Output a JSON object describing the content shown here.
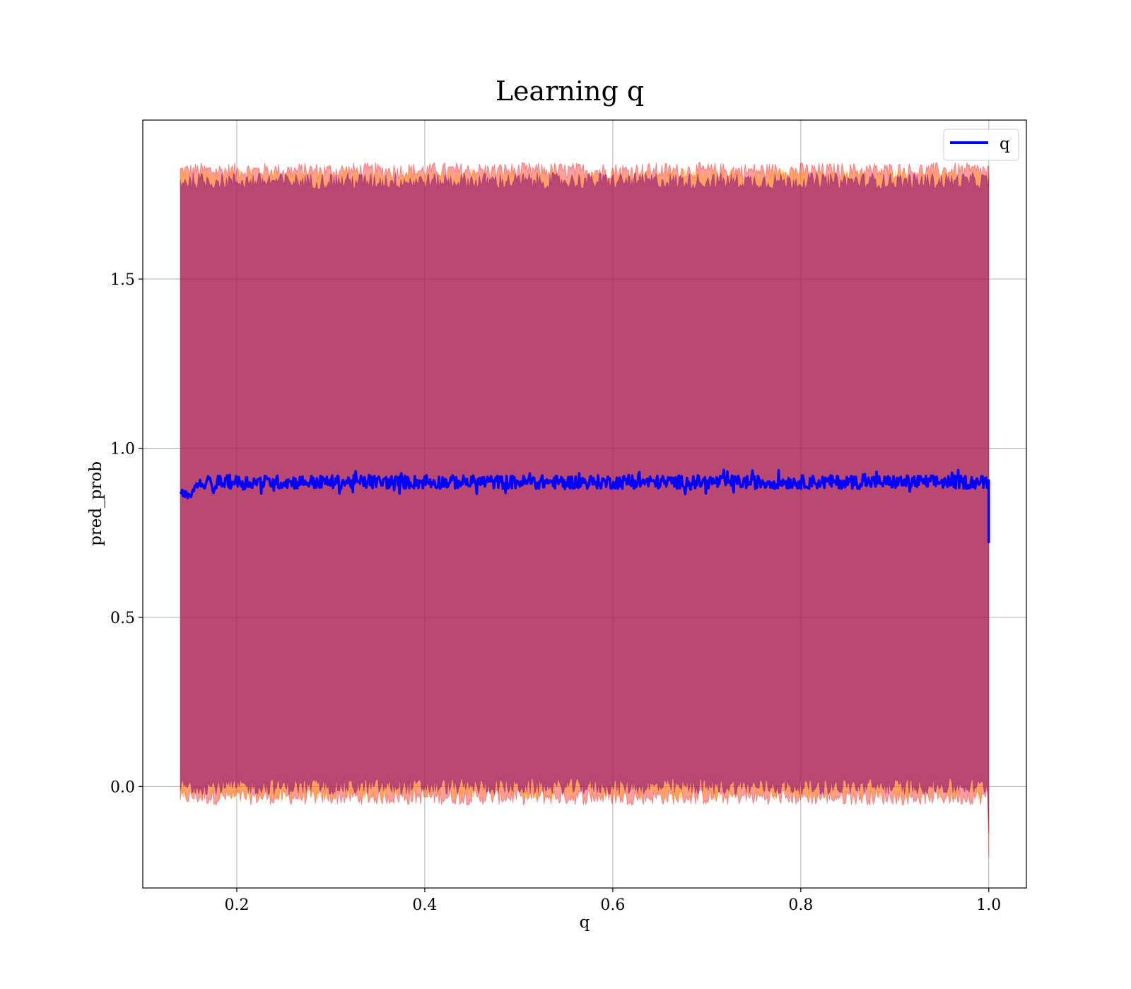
{
  "chart_data": {
    "type": "line",
    "title": "Learning q",
    "xlabel": "q",
    "ylabel": "pred_prob",
    "xlim": [
      0.1,
      1.04
    ],
    "ylim": [
      -0.3,
      1.97
    ],
    "x_ticks": [
      0.2,
      0.4,
      0.6,
      0.8,
      1.0
    ],
    "x_tick_labels": [
      "0.2",
      "0.4",
      "0.6",
      "0.8",
      "1.0"
    ],
    "y_ticks": [
      0.0,
      0.5,
      1.0,
      1.5
    ],
    "y_tick_labels": [
      "0.0",
      "0.5",
      "1.0",
      "1.5"
    ],
    "grid": true,
    "legend_position": "top-right",
    "series": [
      {
        "name": "q",
        "color": "#0000ff",
        "x_start": 0.14,
        "x_end": 1.0,
        "points": [
          [
            0.14,
            0.87
          ],
          [
            0.145,
            0.865
          ],
          [
            0.15,
            0.86
          ],
          [
            0.155,
            0.88
          ],
          [
            0.16,
            0.9
          ],
          [
            0.165,
            0.885
          ],
          [
            0.17,
            0.915
          ],
          [
            0.175,
            0.875
          ],
          [
            0.18,
            0.9
          ],
          [
            0.2,
            0.895
          ],
          [
            0.3,
            0.9
          ],
          [
            0.4,
            0.9
          ],
          [
            0.5,
            0.905
          ],
          [
            0.6,
            0.9
          ],
          [
            0.7,
            0.905
          ],
          [
            0.8,
            0.9
          ],
          [
            0.9,
            0.905
          ],
          [
            0.999,
            0.9
          ],
          [
            1.0,
            0.72
          ]
        ],
        "typical_value": 0.9,
        "noise_amplitude": 0.04
      }
    ],
    "bands": [
      {
        "description": "outer quantile band",
        "color": "#ff0000",
        "lower": -0.03,
        "upper": 1.82
      },
      {
        "description": "middle quantile band",
        "color": "#ffa500",
        "lower": -0.015,
        "upper": 1.8
      },
      {
        "description": "inner quantile band",
        "color": "#800080",
        "lower": 0.0,
        "upper": 1.79
      }
    ]
  }
}
